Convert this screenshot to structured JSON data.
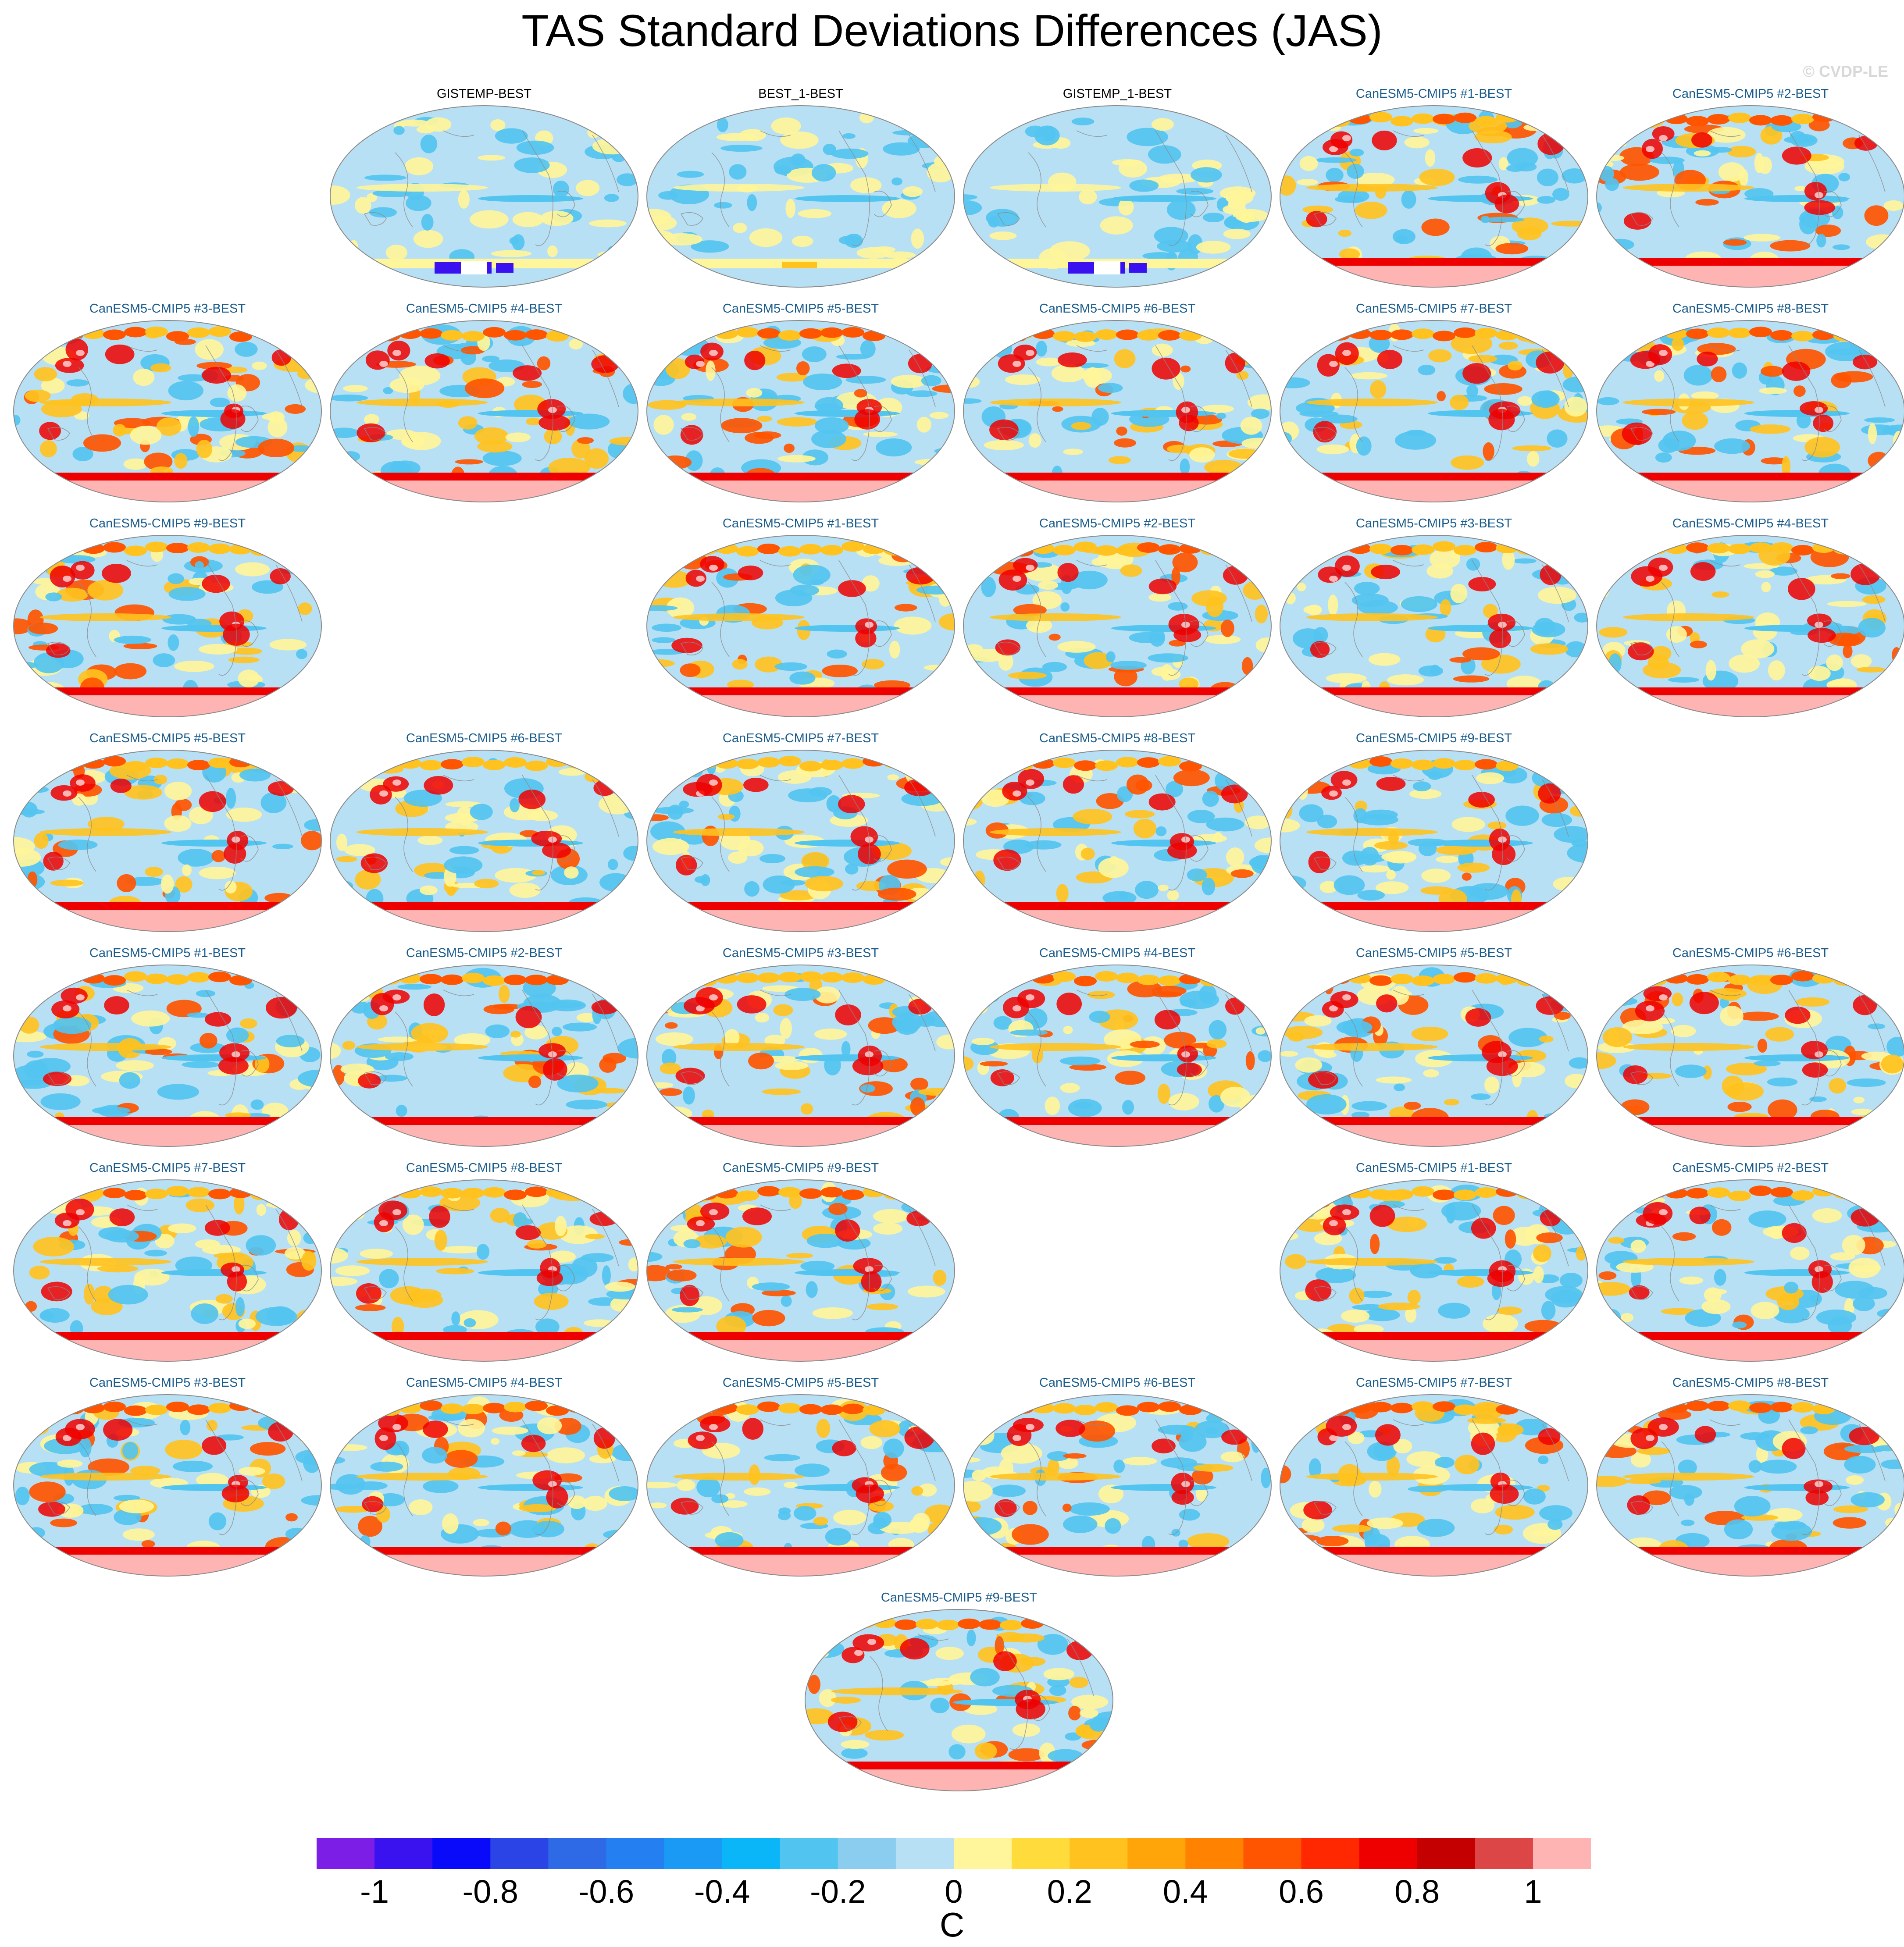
{
  "figure": {
    "title": "TAS Standard Deviations Differences (JAS)",
    "copyright": "© CVDP-LE"
  },
  "panels": [
    {
      "label": "GISTEMP-BEST",
      "kind": "obs",
      "row": 0,
      "col": 1
    },
    {
      "label": "BEST_1-BEST",
      "kind": "obs",
      "row": 0,
      "col": 2
    },
    {
      "label": "GISTEMP_1-BEST",
      "kind": "obs",
      "row": 0,
      "col": 3
    },
    {
      "label": "CanESM5-CMIP5 #1-BEST",
      "kind": "model",
      "row": 0,
      "col": 4
    },
    {
      "label": "CanESM5-CMIP5 #2-BEST",
      "kind": "model",
      "row": 0,
      "col": 5
    },
    {
      "label": "CanESM5-CMIP5 #3-BEST",
      "kind": "model",
      "row": 1,
      "col": 0
    },
    {
      "label": "CanESM5-CMIP5 #4-BEST",
      "kind": "model",
      "row": 1,
      "col": 1
    },
    {
      "label": "CanESM5-CMIP5 #5-BEST",
      "kind": "model",
      "row": 1,
      "col": 2
    },
    {
      "label": "CanESM5-CMIP5 #6-BEST",
      "kind": "model",
      "row": 1,
      "col": 3
    },
    {
      "label": "CanESM5-CMIP5 #7-BEST",
      "kind": "model",
      "row": 1,
      "col": 4
    },
    {
      "label": "CanESM5-CMIP5 #8-BEST",
      "kind": "model",
      "row": 1,
      "col": 5
    },
    {
      "label": "CanESM5-CMIP5 #9-BEST",
      "kind": "model",
      "row": 2,
      "col": 0
    },
    {
      "label": "CanESM5-CMIP5 #1-BEST",
      "kind": "model",
      "row": 2,
      "col": 2
    },
    {
      "label": "CanESM5-CMIP5 #2-BEST",
      "kind": "model",
      "row": 2,
      "col": 3
    },
    {
      "label": "CanESM5-CMIP5 #3-BEST",
      "kind": "model",
      "row": 2,
      "col": 4
    },
    {
      "label": "CanESM5-CMIP5 #4-BEST",
      "kind": "model",
      "row": 2,
      "col": 5
    },
    {
      "label": "CanESM5-CMIP5 #5-BEST",
      "kind": "model",
      "row": 3,
      "col": 0
    },
    {
      "label": "CanESM5-CMIP5 #6-BEST",
      "kind": "model",
      "row": 3,
      "col": 1
    },
    {
      "label": "CanESM5-CMIP5 #7-BEST",
      "kind": "model",
      "row": 3,
      "col": 2
    },
    {
      "label": "CanESM5-CMIP5 #8-BEST",
      "kind": "model",
      "row": 3,
      "col": 3
    },
    {
      "label": "CanESM5-CMIP5 #9-BEST",
      "kind": "model",
      "row": 3,
      "col": 4
    },
    {
      "label": "CanESM5-CMIP5 #1-BEST",
      "kind": "model",
      "row": 4,
      "col": 0
    },
    {
      "label": "CanESM5-CMIP5 #2-BEST",
      "kind": "model",
      "row": 4,
      "col": 1
    },
    {
      "label": "CanESM5-CMIP5 #3-BEST",
      "kind": "model",
      "row": 4,
      "col": 2
    },
    {
      "label": "CanESM5-CMIP5 #4-BEST",
      "kind": "model",
      "row": 4,
      "col": 3
    },
    {
      "label": "CanESM5-CMIP5 #5-BEST",
      "kind": "model",
      "row": 4,
      "col": 4
    },
    {
      "label": "CanESM5-CMIP5 #6-BEST",
      "kind": "model",
      "row": 4,
      "col": 5
    },
    {
      "label": "CanESM5-CMIP5 #7-BEST",
      "kind": "model",
      "row": 5,
      "col": 0
    },
    {
      "label": "CanESM5-CMIP5 #8-BEST",
      "kind": "model",
      "row": 5,
      "col": 1
    },
    {
      "label": "CanESM5-CMIP5 #9-BEST",
      "kind": "model",
      "row": 5,
      "col": 2
    },
    {
      "label": "CanESM5-CMIP5 #1-BEST",
      "kind": "model",
      "row": 5,
      "col": 4
    },
    {
      "label": "CanESM5-CMIP5 #2-BEST",
      "kind": "model",
      "row": 5,
      "col": 5
    },
    {
      "label": "CanESM5-CMIP5 #3-BEST",
      "kind": "model",
      "row": 6,
      "col": 0
    },
    {
      "label": "CanESM5-CMIP5 #4-BEST",
      "kind": "model",
      "row": 6,
      "col": 1
    },
    {
      "label": "CanESM5-CMIP5 #5-BEST",
      "kind": "model",
      "row": 6,
      "col": 2
    },
    {
      "label": "CanESM5-CMIP5 #6-BEST",
      "kind": "model",
      "row": 6,
      "col": 3
    },
    {
      "label": "CanESM5-CMIP5 #7-BEST",
      "kind": "model",
      "row": 6,
      "col": 4
    },
    {
      "label": "CanESM5-CMIP5 #8-BEST",
      "kind": "model",
      "row": 6,
      "col": 5
    },
    {
      "label": "CanESM5-CMIP5 #9-BEST",
      "kind": "model",
      "row": 7,
      "col": 2.5
    }
  ],
  "colorbar": {
    "units": "C",
    "min": -1.1,
    "max": 1.1,
    "tick_labels": [
      "-1",
      "-0.8",
      "-0.6",
      "-0.4",
      "-0.2",
      "0",
      "0.2",
      "0.4",
      "0.6",
      "0.8",
      "1"
    ],
    "tick_values": [
      -1,
      -0.8,
      -0.6,
      -0.4,
      -0.2,
      0,
      0.2,
      0.4,
      0.6,
      0.8,
      1
    ],
    "colors": [
      "#7c1ee6",
      "#3a12f0",
      "#0a0afa",
      "#2a44e6",
      "#2f6ae6",
      "#2480f0",
      "#1a9af4",
      "#0ab6f8",
      "#52c4f0",
      "#8acdee",
      "#b8e0f4",
      "#fff59a",
      "#ffdc3c",
      "#ffc21e",
      "#ffa50a",
      "#ff8200",
      "#ff5500",
      "#ff2800",
      "#ee0000",
      "#c40000",
      "#dc4646",
      "#ffb4b4"
    ]
  },
  "map_colors": {
    "ocean_base": "#b8e0f4",
    "cool": "#52c4f0",
    "warm_light": "#fff59a",
    "warm": "#ffc21e",
    "hot": "#ff5500",
    "very_hot": "#ee0000",
    "extreme": "#ffb4b4",
    "deep_cold": "#3a12f0",
    "coast": "#8a8a8a",
    "outline": "#8a8a8a"
  }
}
